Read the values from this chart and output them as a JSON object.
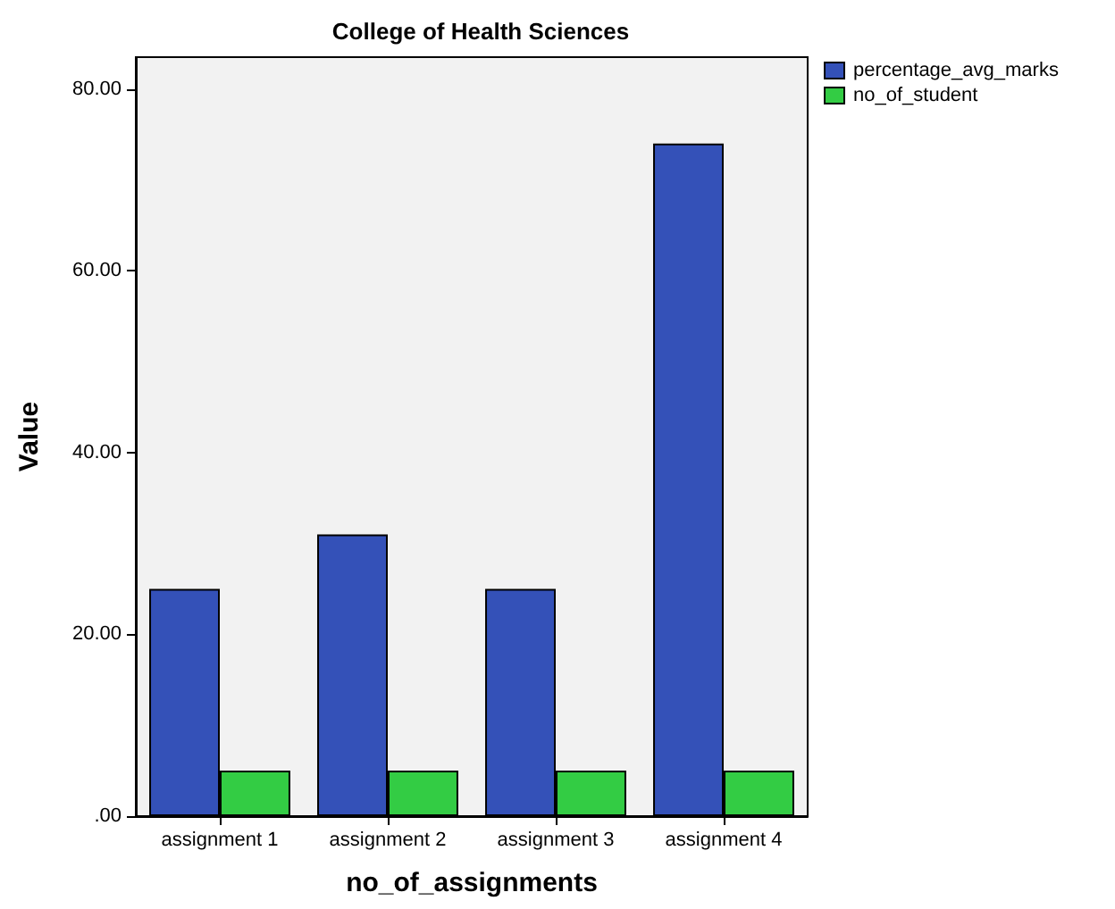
{
  "chart_data": {
    "type": "bar",
    "title": "College of Health Sciences",
    "xlabel": "no_of_assignments",
    "ylabel": "Value",
    "categories": [
      "assignment 1",
      "assignment 2",
      "assignment 3",
      "assignment 4"
    ],
    "series": [
      {
        "name": "percentage_avg_marks",
        "color": "#3451b8",
        "values": [
          25,
          31,
          25,
          74
        ]
      },
      {
        "name": "no_of_student",
        "color": "#33cc44",
        "values": [
          5,
          5,
          5,
          5
        ]
      }
    ],
    "ylim": [
      0,
      83.5
    ],
    "yticks": [
      {
        "value": 0,
        "label": ".00"
      },
      {
        "value": 20,
        "label": "20.00"
      },
      {
        "value": 40,
        "label": "40.00"
      },
      {
        "value": 60,
        "label": "60.00"
      },
      {
        "value": 80,
        "label": "80.00"
      }
    ],
    "grid": false,
    "legend": "top right"
  }
}
